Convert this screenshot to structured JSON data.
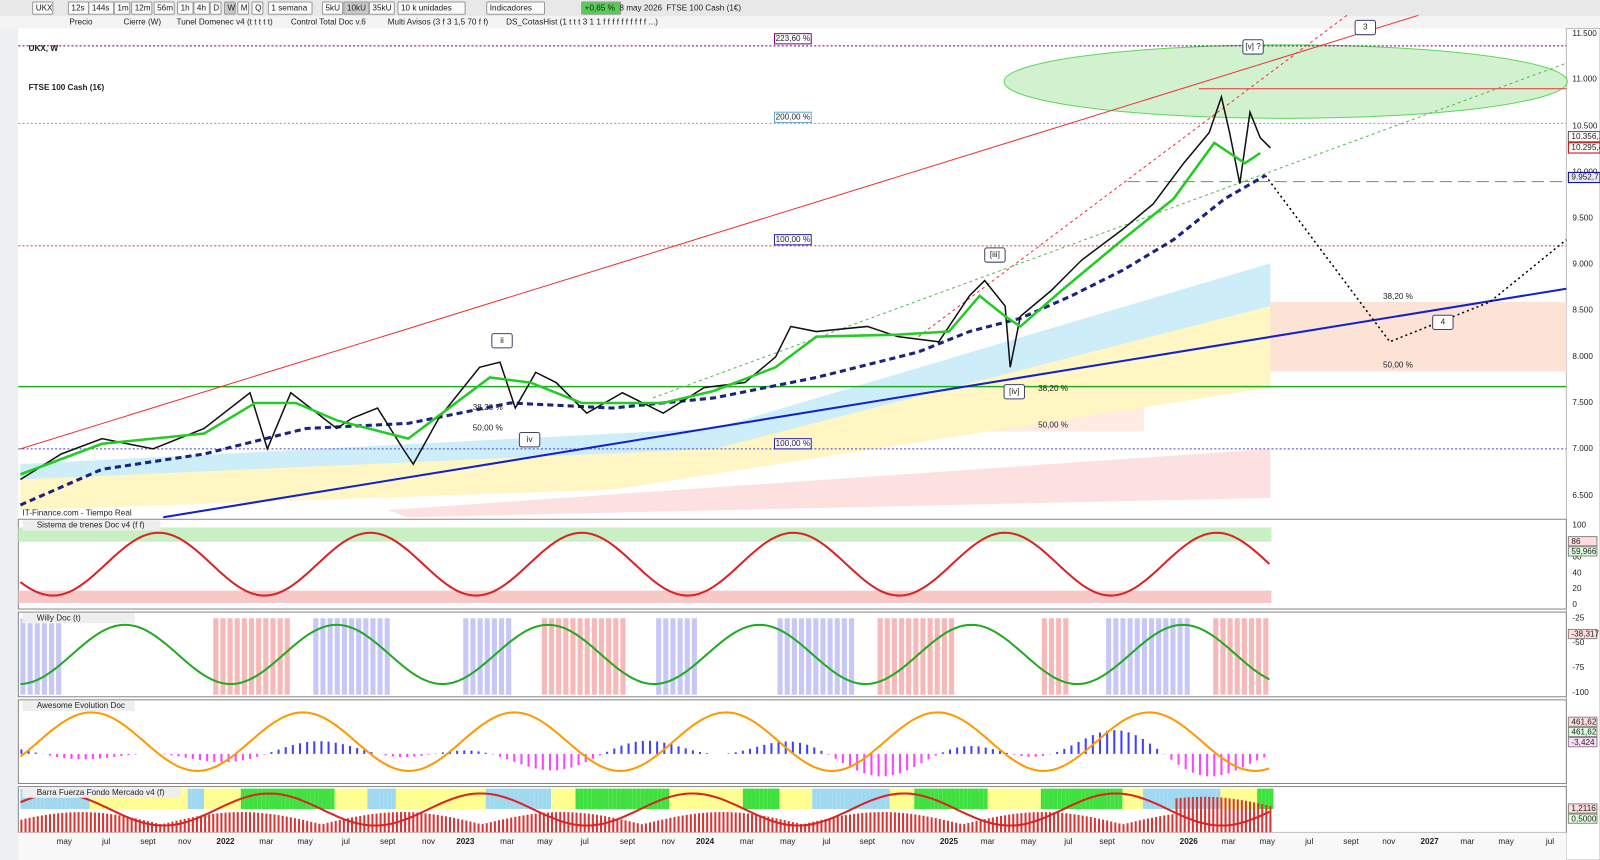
{
  "toolbar": [
    "UKX",
    "12s",
    "144s",
    "1m",
    "12m",
    "56m",
    "1h",
    "4h",
    "D",
    "W",
    "M",
    "Q",
    "1 semana",
    "5kU",
    "10kU",
    "35kU",
    "10 k unidades",
    "Indicadores",
    "+0,65 %",
    "8 may 2026",
    "FTSE 100 Cash (1€)"
  ],
  "indicators": [
    "Precio",
    "Cierre (W)",
    "Tunel Domenec v4 (t t t t t)",
    "Control Total Doc v.6",
    "Multi Avisos (3 f 3 1,5 70 f f)",
    "DS_CotasHist (1 t t t 3 1 1 f f f f f f f f f f ...)"
  ],
  "title": [
    "UKX, W",
    "FTSE 100 Cash (1€)"
  ],
  "source": "IT-Finance.com - Tiempo Real",
  "price_axis": [
    "11.500",
    "11.000",
    "10.500",
    "10.000",
    "9.500",
    "9.000",
    "8.500",
    "8.000",
    "7.500",
    "7.000",
    "6.500"
  ],
  "price_tags": [
    "10.356,1",
    "10.295,4",
    "9.952,7"
  ],
  "fib_labels": [
    "223,60 %",
    "200,00 %",
    "100,00 %",
    "100,00 %",
    "38,20 %",
    "50,00 %",
    "38,20 %",
    "50,00 %",
    "38,20 %",
    "50,00 %"
  ],
  "waves": [
    "3",
    "[v] ?",
    "[iii]",
    "ii",
    "iv",
    "[iv]",
    "4"
  ],
  "panels": [
    {
      "name": "Sistema de trenes Doc v4 (f f)",
      "axis": [
        "100",
        "80",
        "60",
        "40",
        "20",
        "0"
      ],
      "tags": [
        "86",
        "59,966"
      ]
    },
    {
      "name": "Willy Doc (t)",
      "axis": [
        "-25",
        "-50",
        "-75",
        "-100"
      ],
      "tags": [
        "-38,317"
      ]
    },
    {
      "name": "Awesome Evolution Doc",
      "axis": [],
      "tags": [
        "461,62",
        "461,62",
        "-3,424"
      ]
    },
    {
      "name": "Barra Fuerza Fondo Mercado v4 (f)",
      "axis": [],
      "tags": [
        "1,2116",
        "0,5000"
      ]
    }
  ],
  "time_axis": [
    "may",
    "jul",
    "sept",
    "nov",
    "2022",
    "mar",
    "may",
    "jul",
    "sept",
    "nov",
    "2023",
    "mar",
    "may",
    "jul",
    "sept",
    "nov",
    "2024",
    "mar",
    "may",
    "jul",
    "sept",
    "nov",
    "2025",
    "mar",
    "may",
    "jul",
    "sept",
    "nov",
    "2026",
    "mar",
    "may",
    "jul",
    "sept",
    "nov",
    "2027",
    "mar",
    "may",
    "jul"
  ]
}
